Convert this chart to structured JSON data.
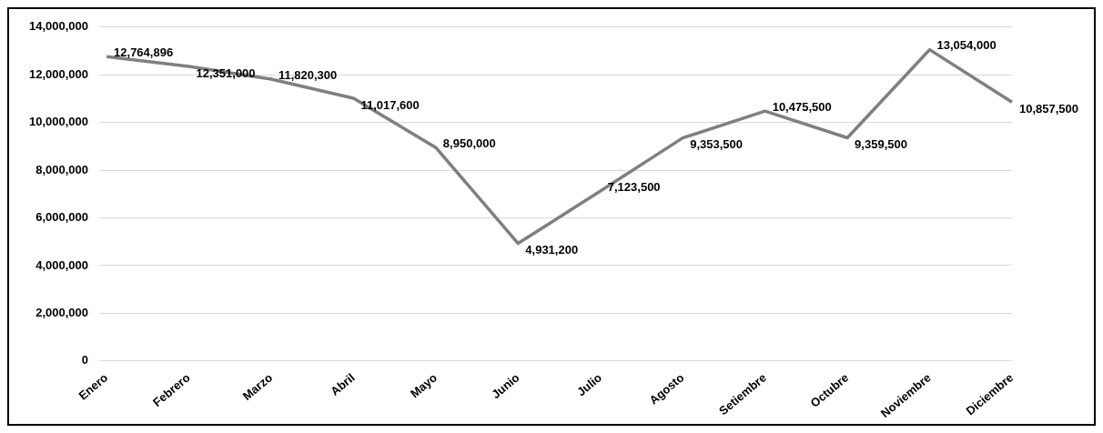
{
  "chart_data": {
    "type": "line",
    "categories": [
      "Enero",
      "Febrero",
      "Marzo",
      "Abril",
      "Mayo",
      "Junio",
      "Julio",
      "Agosto",
      "Setiembre",
      "Octubre",
      "Noviembre",
      "Diciembre"
    ],
    "series": [
      {
        "color": "#7f7f7f",
        "values": [
          12764896,
          12351000,
          11820300,
          11017600,
          8950000,
          4931200,
          7123500,
          9353500,
          10475500,
          9359500,
          13054000,
          10857500
        ],
        "value_labels": [
          "12,764,896",
          "12,351,000",
          "11,820,300",
          "11,017,600",
          "8,950,000",
          "4,931,200",
          "7,123,500",
          "9,353,500",
          "10,475,500",
          "9,359,500",
          "13,054,000",
          "10,857,500"
        ]
      }
    ],
    "ylim": [
      0,
      14000000
    ],
    "yticks": [
      0,
      {
        "value": 2000000,
        "label": "2,000,000"
      },
      {
        "value": 4000000,
        "label": "4,000,000"
      },
      {
        "value": 6000000,
        "label": "6,000,000"
      },
      {
        "value": 8000000,
        "label": "8,000,000"
      },
      {
        "value": 10000000,
        "label": "10,000,000"
      },
      {
        "value": 12000000,
        "label": "12,000,000"
      },
      {
        "value": 14000000,
        "label": "14,000,000"
      }
    ],
    "grid": "y",
    "legend": false,
    "marker": "none",
    "line_style": "solid"
  }
}
